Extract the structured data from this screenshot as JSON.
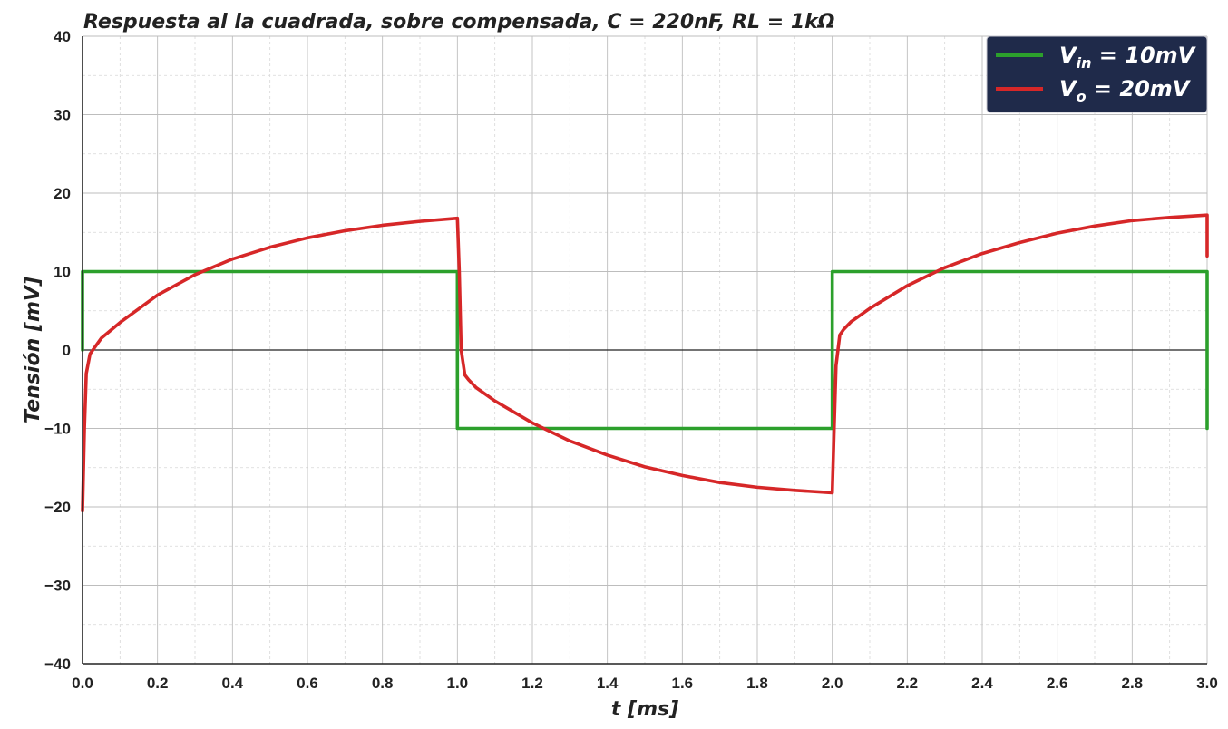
{
  "chart_data": {
    "type": "line",
    "title": "Respuesta al la cuadrada, sobre compensada, C = 220nF, RL = 1kΩ",
    "xlabel": "t [ms]",
    "ylabel": "Tensión [mV]",
    "xlim": [
      0,
      3
    ],
    "ylim": [
      -40,
      40
    ],
    "xticks": [
      0.0,
      0.2,
      0.4,
      0.6,
      0.8,
      1.0,
      1.2,
      1.4,
      1.6,
      1.8,
      2.0,
      2.2,
      2.4,
      2.6,
      2.8,
      3.0
    ],
    "xtick_labels": [
      "0.0",
      "0.2",
      "0.4",
      "0.6",
      "0.8",
      "1.0",
      "1.2",
      "1.4",
      "1.6",
      "1.8",
      "2.0",
      "2.2",
      "2.4",
      "2.6",
      "2.8",
      "3.0"
    ],
    "yticks": [
      -40,
      -30,
      -20,
      -10,
      0,
      10,
      20,
      30,
      40
    ],
    "ytick_labels": [
      "−40",
      "−30",
      "−20",
      "−10",
      "0",
      "10",
      "20",
      "30",
      "40"
    ],
    "grid": true,
    "legend_position": "top-right",
    "series": [
      {
        "name": "Vin = 10mV",
        "legend": {
          "main": "V",
          "sub": "in",
          "rest": " = 10mV"
        },
        "color": "#2ca02c",
        "x": [
          0.0,
          0.0,
          0.0,
          1.0,
          1.0,
          2.0,
          2.0,
          3.0,
          3.0
        ],
        "y": [
          0,
          0,
          10,
          10,
          -10,
          -10,
          10,
          10,
          -10
        ]
      },
      {
        "name": "Vo = 20mV",
        "legend": {
          "main": "V",
          "sub": "o",
          "rest": " = 20mV"
        },
        "color": "#d62728",
        "x": [
          0.0,
          0.005,
          0.01,
          0.02,
          0.05,
          0.1,
          0.2,
          0.3,
          0.4,
          0.5,
          0.6,
          0.7,
          0.8,
          0.9,
          1.0,
          1.005,
          1.01,
          1.02,
          1.03,
          1.05,
          1.1,
          1.2,
          1.3,
          1.4,
          1.5,
          1.6,
          1.7,
          1.8,
          1.9,
          2.0,
          2.005,
          2.01,
          2.02,
          2.03,
          2.05,
          2.1,
          2.2,
          2.3,
          2.4,
          2.5,
          2.6,
          2.7,
          2.8,
          2.9,
          3.0,
          3.0
        ],
        "y": [
          -20.5,
          -10,
          -3,
          -0.5,
          1.5,
          3.5,
          7.0,
          9.6,
          11.6,
          13.1,
          14.3,
          15.2,
          15.9,
          16.4,
          16.8,
          10,
          0,
          -3.2,
          -3.8,
          -4.8,
          -6.5,
          -9.3,
          -11.6,
          -13.4,
          -14.9,
          -16.0,
          -16.9,
          -17.5,
          -17.9,
          -18.2,
          -10,
          -2,
          1.9,
          2.6,
          3.6,
          5.3,
          8.2,
          10.5,
          12.3,
          13.7,
          14.9,
          15.8,
          16.5,
          16.9,
          17.2,
          12
        ]
      }
    ]
  }
}
